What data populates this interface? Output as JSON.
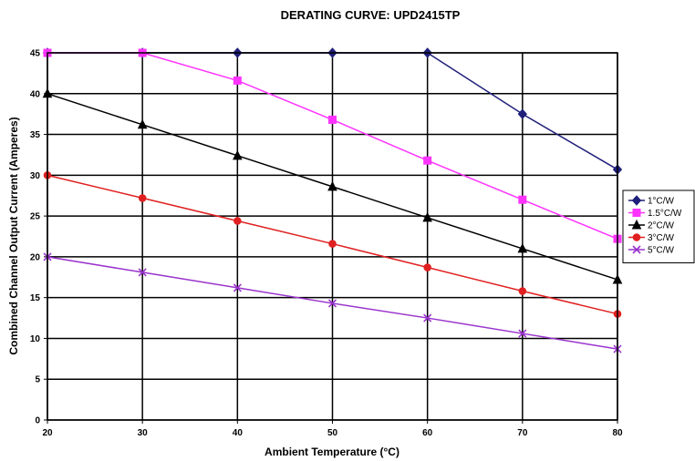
{
  "chart_data": {
    "type": "line",
    "title": "DERATING CURVE: UPD2415TP",
    "xlabel": "Ambient Temperature (°C)",
    "ylabel": "Combined Channel Output Current (Amperes)",
    "x": [
      20,
      30,
      40,
      50,
      60,
      70,
      80
    ],
    "xlim": [
      20,
      80
    ],
    "ylim": [
      0,
      45
    ],
    "xticks": [
      "20",
      "30",
      "40",
      "50",
      "60",
      "70",
      "80"
    ],
    "yticks": [
      "0",
      "5",
      "10",
      "15",
      "20",
      "25",
      "30",
      "35",
      "40",
      "45"
    ],
    "grid": true,
    "legend_position": "right",
    "series": [
      {
        "name": "1°C/W",
        "color": "#1f1f7a",
        "marker": "diamond",
        "values": [
          45,
          45,
          45,
          45,
          45,
          37.5,
          30.7
        ]
      },
      {
        "name": "1.5°C/W",
        "color": "#ff33ff",
        "marker": "square",
        "values": [
          45,
          45,
          41.6,
          36.8,
          31.8,
          27,
          22.2
        ]
      },
      {
        "name": "2°C/W",
        "color": "#000000",
        "marker": "triangle",
        "values": [
          40,
          36.2,
          32.4,
          28.6,
          24.8,
          21,
          17.2
        ]
      },
      {
        "name": "3°C/W",
        "color": "#e02020",
        "marker": "circle",
        "values": [
          30,
          27.2,
          24.4,
          21.6,
          18.7,
          15.8,
          13
        ]
      },
      {
        "name": "5°C/W",
        "color": "#9933cc",
        "marker": "x",
        "values": [
          20,
          18.1,
          16.2,
          14.3,
          12.5,
          10.6,
          8.7
        ]
      }
    ]
  }
}
